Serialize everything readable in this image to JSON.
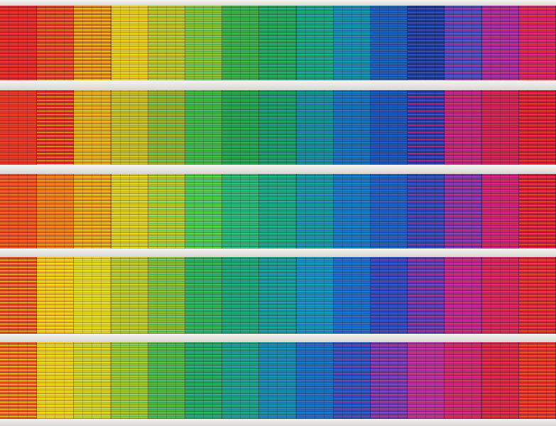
{
  "scene": "facade-of-colored-blinds",
  "colors": {
    "band": "#ecebe7",
    "rows": [
      [
        "#d8282a",
        "#dc3a2c",
        "#d6801e",
        "#f0c41e",
        "#b8b82c",
        "#8cbc38",
        "#3ea848",
        "#2a9a58",
        "#1e9e72",
        "#1890a4",
        "#1e62b4",
        "#1e3a94",
        "#4a4cb0",
        "#9a2e9c",
        "#c8286a"
      ],
      [
        "#e03a26",
        "#d83028",
        "#e0a01c",
        "#c0b828",
        "#98a830",
        "#48b048",
        "#2a9c50",
        "#1e9460",
        "#1a8c8a",
        "#1c70b0",
        "#1c58b0",
        "#2a3ca0",
        "#b02c7a",
        "#c02858",
        "#c8203a"
      ],
      [
        "#e44a24",
        "#e8701e",
        "#e09420",
        "#d8c424",
        "#b4c030",
        "#58c04c",
        "#30b070",
        "#1ea078",
        "#1c9494",
        "#1a78b8",
        "#2060b8",
        "#3048a8",
        "#7838a0",
        "#c02878",
        "#c8203c"
      ],
      [
        "#e04a26",
        "#f0b81e",
        "#e8d020",
        "#b8c02c",
        "#8cb838",
        "#38a858",
        "#20a070",
        "#1c9488",
        "#1890b0",
        "#1c70c0",
        "#2a4cb4",
        "#5a3ca8",
        "#b02c8c",
        "#c82860",
        "#d0283c"
      ],
      [
        "#e85a22",
        "#f0c41e",
        "#d0c828",
        "#a0c030",
        "#58b040",
        "#2aa060",
        "#209c7c",
        "#1c88a0",
        "#1c70b8",
        "#2a54b4",
        "#6a3ca8",
        "#a83494",
        "#c02c70",
        "#c8284c",
        "#d8302c"
      ]
    ]
  }
}
